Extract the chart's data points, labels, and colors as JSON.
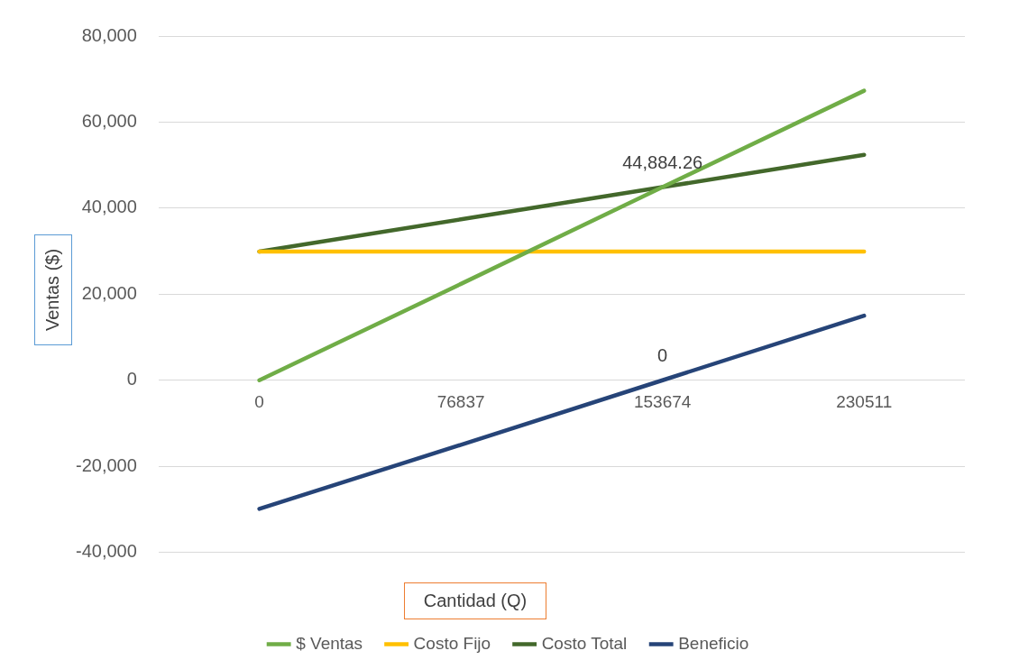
{
  "chart_data": {
    "type": "line",
    "xlabel": "Cantidad (Q)",
    "ylabel": "Ventas ($)",
    "categories": [
      "0",
      "76837",
      "153674",
      "230511"
    ],
    "series": [
      {
        "name": "$ Ventas",
        "color": "#70ad47",
        "values": [
          0,
          22400,
          44900,
          67300
        ]
      },
      {
        "name": "Costo Fijo",
        "color": "#ffc000",
        "values": [
          29900,
          29900,
          29900,
          29900
        ]
      },
      {
        "name": "Costo Total",
        "color": "#43682b",
        "values": [
          29900,
          37400,
          44884.26,
          52400
        ],
        "value_labels": [
          null,
          null,
          "44,884.26",
          null
        ]
      },
      {
        "name": "Beneficio",
        "color": "#264478",
        "values": [
          -29900,
          -15000,
          0,
          15000
        ],
        "value_labels": [
          null,
          null,
          "0",
          null
        ]
      }
    ],
    "ylim": [
      -40000,
      80000
    ],
    "yticks": [
      {
        "value": -40000,
        "label": "-40,000"
      },
      {
        "value": -20000,
        "label": "-20,000"
      },
      {
        "value": 0,
        "label": "0"
      },
      {
        "value": 20000,
        "label": "20,000"
      },
      {
        "value": 40000,
        "label": "40,000"
      },
      {
        "value": 60000,
        "label": "60,000"
      },
      {
        "value": 80000,
        "label": "80,000"
      }
    ],
    "grid": "y",
    "legend": "bottom",
    "marker": "none",
    "line_style": "solid"
  }
}
